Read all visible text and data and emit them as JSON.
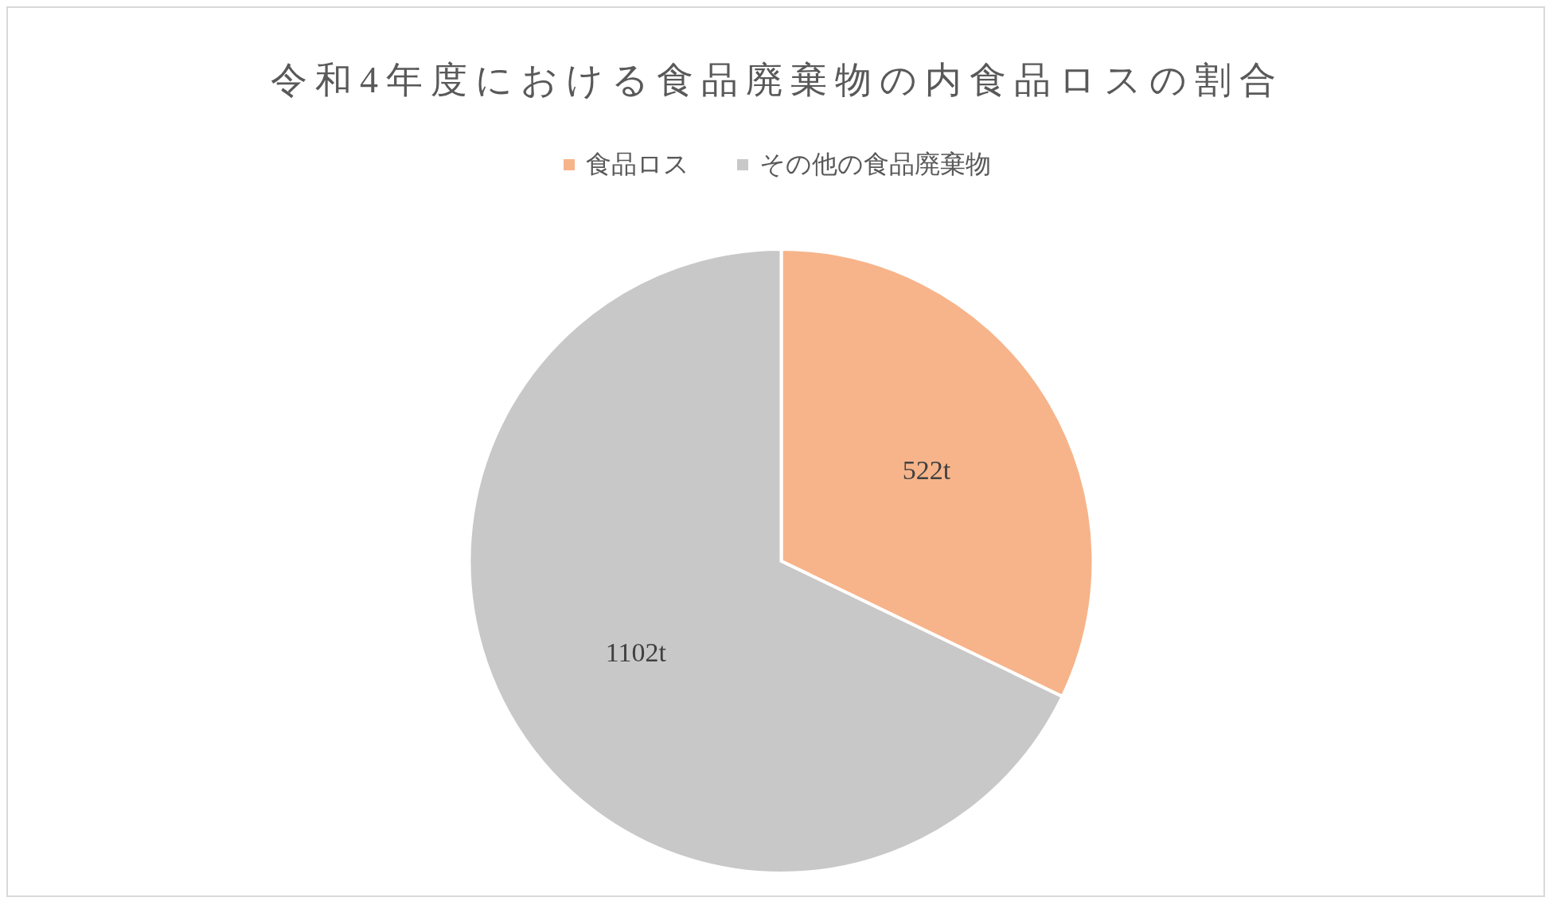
{
  "chart_data": {
    "type": "pie",
    "title": "令和4年度における食品廃棄物の内食品ロスの割合",
    "categories": [
      "食品ロス",
      "その他の食品廃棄物"
    ],
    "values": [
      522,
      1102
    ],
    "colors": [
      "#f7b48a",
      "#c8c8c8"
    ],
    "value_labels": [
      "522t",
      "1102t"
    ],
    "legend": "top"
  }
}
